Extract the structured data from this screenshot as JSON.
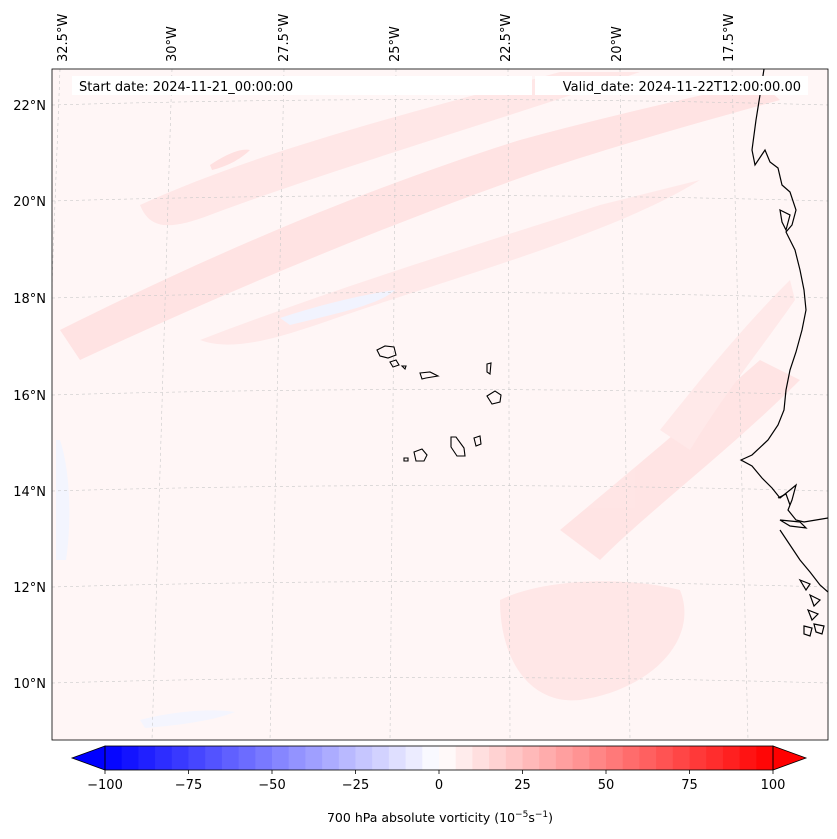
{
  "header": {
    "start_date": "Start date: 2024-11-21_00:00:00",
    "valid_date": "Valid_date: 2024-11-22T12:00:00.00"
  },
  "map": {
    "lon_labels": [
      "32.5°W",
      "30°W",
      "27.5°W",
      "25°W",
      "22.5°W",
      "20°W",
      "17.5°W"
    ],
    "lat_labels": [
      "22°N",
      "20°N",
      "18°N",
      "16°N",
      "14°N",
      "12°N",
      "10°N"
    ],
    "colors": {
      "coast": "#000000",
      "grid": "#bbbbbb",
      "shade_pos": "#ffe4e4",
      "shade_neg": "#f2f5ff"
    }
  },
  "colorbar": {
    "ticks": [
      -100,
      -75,
      -50,
      -25,
      0,
      25,
      50,
      75,
      100
    ],
    "tick_labels": [
      "−100",
      "−75",
      "−50",
      "−25",
      "0",
      "25",
      "50",
      "75",
      "100"
    ],
    "label_main": "700 hPa absolute vorticity (10",
    "label_exp1": "−5",
    "label_mid": "s",
    "label_exp2": "−1",
    "label_end": ")",
    "min": -100,
    "max": 100,
    "step": 5,
    "neg_color": "#0000ff",
    "pos_color": "#ff0000",
    "neutral_color": "#ffffff"
  }
}
